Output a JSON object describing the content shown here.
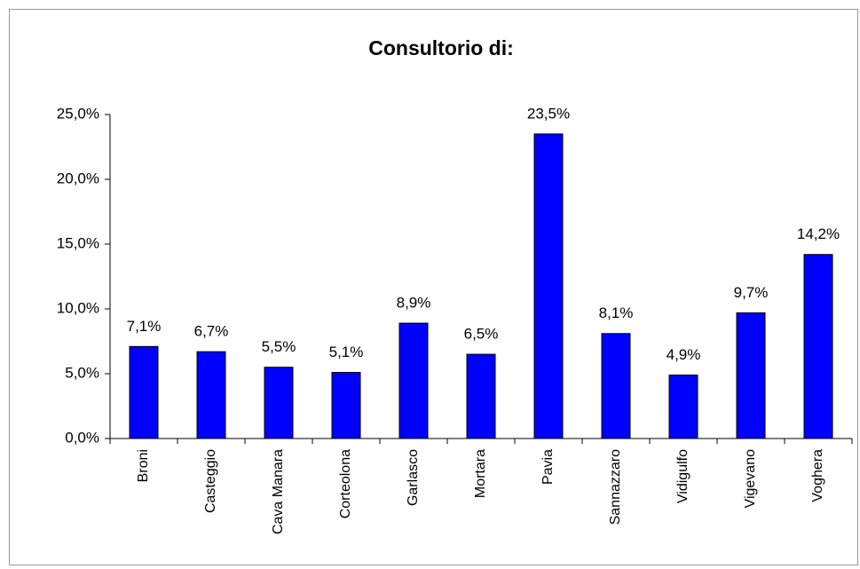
{
  "chart_data": {
    "type": "bar",
    "title": "Consultorio di:",
    "categories": [
      "Broni",
      "Casteggio",
      "Cava Manara",
      "Corteolona",
      "Garlasco",
      "Mortara",
      "Pavia",
      "Sannazzaro",
      "Vidigulfo",
      "Vigevano",
      "Voghera"
    ],
    "values": [
      7.1,
      6.7,
      5.5,
      5.1,
      8.9,
      6.5,
      23.5,
      8.1,
      4.9,
      9.7,
      14.2
    ],
    "value_labels": [
      "7,1%",
      "6,7%",
      "5,5%",
      "5,1%",
      "8,9%",
      "6,5%",
      "23,5%",
      "8,1%",
      "4,9%",
      "9,7%",
      "14,2%"
    ],
    "color": "#0000ff",
    "ylim": [
      0,
      25
    ],
    "yticks": [
      {
        "value": 0,
        "label": "0,0%"
      },
      {
        "value": 5,
        "label": "5,0%"
      },
      {
        "value": 10,
        "label": "10,0%"
      },
      {
        "value": 15,
        "label": "15,0%"
      },
      {
        "value": 20,
        "label": "20,0%"
      },
      {
        "value": 25,
        "label": "25,0%"
      }
    ],
    "grid": false
  }
}
